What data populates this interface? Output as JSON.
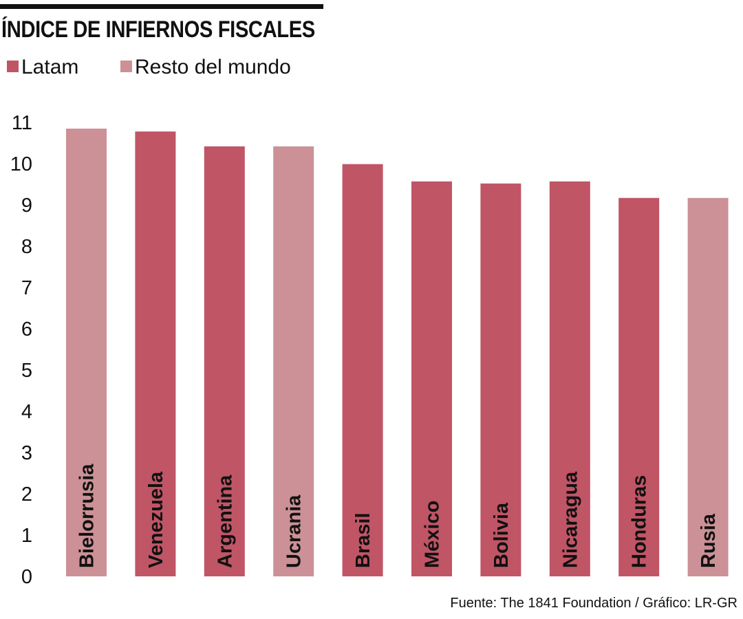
{
  "title": "ÍNDICE DE INFIERNOS FISCALES",
  "legend": [
    {
      "label": "Latam",
      "color": "#c05566"
    },
    {
      "label": "Resto del mundo",
      "color": "#cb9196"
    }
  ],
  "source": "Fuente: The 1841 Foundation  / Gráfico: LR-GR",
  "chart_data": {
    "type": "bar",
    "title": "ÍNDICE DE INFIERNOS FISCALES",
    "xlabel": "",
    "ylabel": "",
    "ylim": [
      0,
      11
    ],
    "yticks": [
      0,
      1,
      2,
      3,
      4,
      5,
      6,
      7,
      8,
      9,
      10,
      11
    ],
    "grid": false,
    "legend_position": "top-left",
    "bar_labels": "inside-bar-vertical",
    "categories": [
      "Bielorrusia",
      "Venezuela",
      "Argentina",
      "Ucrania",
      "Brasil",
      "México",
      "Bolivia",
      "Nicaragua",
      "Honduras",
      "Rusia"
    ],
    "values": [
      10.85,
      10.78,
      10.42,
      10.42,
      9.99,
      9.57,
      9.52,
      9.57,
      9.17,
      9.17
    ],
    "groups": [
      "Resto del mundo",
      "Latam",
      "Latam",
      "Resto del mundo",
      "Latam",
      "Latam",
      "Latam",
      "Latam",
      "Latam",
      "Resto del mundo"
    ]
  }
}
